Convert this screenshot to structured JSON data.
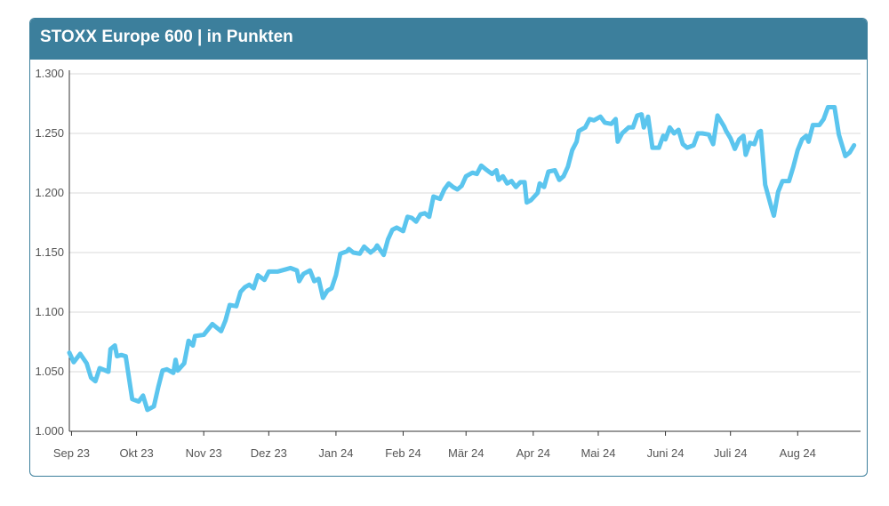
{
  "header": {
    "title": "STOXX Europe 600 | in Punkten"
  },
  "colors": {
    "header_bg": "#3c7f9c",
    "line": "#5bc5ee",
    "grid": "#d9d9d9",
    "axis": "#333333",
    "tick_text": "#555555"
  },
  "chart_data": {
    "type": "line",
    "title": "STOXX Europe 600 | in Punkten",
    "xlabel": "",
    "ylabel": "",
    "ylim": [
      1000,
      1300
    ],
    "y_ticks": [
      {
        "value": 1000,
        "label": "1.000"
      },
      {
        "value": 1050,
        "label": "1.050"
      },
      {
        "value": 1100,
        "label": "1.100"
      },
      {
        "value": 1150,
        "label": "1.150"
      },
      {
        "value": 1200,
        "label": "1.200"
      },
      {
        "value": 1250,
        "label": "1.250"
      },
      {
        "value": 1300,
        "label": "1.300"
      }
    ],
    "x_range": [
      "2023-08-31",
      "2024-08-30"
    ],
    "x_ticks": [
      {
        "date": "2023-09-01",
        "label": "Sep 23"
      },
      {
        "date": "2023-10-01",
        "label": "Okt 23"
      },
      {
        "date": "2023-11-01",
        "label": "Nov 23"
      },
      {
        "date": "2023-12-01",
        "label": "Dez 23"
      },
      {
        "date": "2024-01-01",
        "label": "Jan 24"
      },
      {
        "date": "2024-02-01",
        "label": "Feb 24"
      },
      {
        "date": "2024-03-01",
        "label": "Mär 24"
      },
      {
        "date": "2024-04-01",
        "label": "Apr 24"
      },
      {
        "date": "2024-05-01",
        "label": "Mai 24"
      },
      {
        "date": "2024-06-01",
        "label": "Juni 24"
      },
      {
        "date": "2024-07-01",
        "label": "Juli 24"
      },
      {
        "date": "2024-08-01",
        "label": "Aug 24"
      }
    ],
    "grid": true,
    "legend": "none",
    "series": [
      {
        "points": [
          [
            "2023-08-31",
            1066
          ],
          [
            "2023-09-02",
            1058
          ],
          [
            "2023-09-05",
            1065
          ],
          [
            "2023-09-08",
            1057
          ],
          [
            "2023-09-10",
            1045
          ],
          [
            "2023-09-12",
            1042
          ],
          [
            "2023-09-14",
            1053
          ],
          [
            "2023-09-18",
            1050
          ],
          [
            "2023-09-19",
            1069
          ],
          [
            "2023-09-21",
            1072
          ],
          [
            "2023-09-22",
            1063
          ],
          [
            "2023-09-24",
            1064
          ],
          [
            "2023-09-26",
            1063
          ],
          [
            "2023-09-29",
            1027
          ],
          [
            "2023-10-02",
            1025
          ],
          [
            "2023-10-04",
            1030
          ],
          [
            "2023-10-06",
            1018
          ],
          [
            "2023-10-09",
            1021
          ],
          [
            "2023-10-11",
            1037
          ],
          [
            "2023-10-13",
            1051
          ],
          [
            "2023-10-15",
            1052
          ],
          [
            "2023-10-18",
            1049
          ],
          [
            "2023-10-19",
            1060
          ],
          [
            "2023-10-20",
            1051
          ],
          [
            "2023-10-23",
            1057
          ],
          [
            "2023-10-25",
            1076
          ],
          [
            "2023-10-27",
            1072
          ],
          [
            "2023-10-28",
            1080
          ],
          [
            "2023-11-01",
            1081
          ],
          [
            "2023-11-05",
            1090
          ],
          [
            "2023-11-07",
            1087
          ],
          [
            "2023-11-09",
            1084
          ],
          [
            "2023-11-11",
            1093
          ],
          [
            "2023-11-13",
            1106
          ],
          [
            "2023-11-16",
            1105
          ],
          [
            "2023-11-18",
            1117
          ],
          [
            "2023-11-20",
            1121
          ],
          [
            "2023-11-22",
            1123
          ],
          [
            "2023-11-24",
            1120
          ],
          [
            "2023-11-26",
            1131
          ],
          [
            "2023-11-29",
            1127
          ],
          [
            "2023-12-01",
            1134
          ],
          [
            "2023-12-05",
            1134
          ],
          [
            "2023-12-09",
            1136
          ],
          [
            "2023-12-11",
            1137
          ],
          [
            "2023-12-14",
            1135
          ],
          [
            "2023-12-15",
            1126
          ],
          [
            "2023-12-17",
            1132
          ],
          [
            "2023-12-20",
            1135
          ],
          [
            "2023-12-22",
            1126
          ],
          [
            "2023-12-24",
            1128
          ],
          [
            "2023-12-26",
            1112
          ],
          [
            "2023-12-28",
            1118
          ],
          [
            "2023-12-30",
            1120
          ],
          [
            "2024-01-01",
            1131
          ],
          [
            "2024-01-03",
            1149
          ],
          [
            "2024-01-06",
            1151
          ],
          [
            "2024-01-07",
            1153
          ],
          [
            "2024-01-09",
            1150
          ],
          [
            "2024-01-12",
            1149
          ],
          [
            "2024-01-14",
            1155
          ],
          [
            "2024-01-17",
            1150
          ],
          [
            "2024-01-19",
            1153
          ],
          [
            "2024-01-20",
            1156
          ],
          [
            "2024-01-23",
            1148
          ],
          [
            "2024-01-25",
            1161
          ],
          [
            "2024-01-27",
            1169
          ],
          [
            "2024-01-29",
            1171
          ],
          [
            "2024-02-01",
            1168
          ],
          [
            "2024-02-03",
            1180
          ],
          [
            "2024-02-05",
            1179
          ],
          [
            "2024-02-07",
            1176
          ],
          [
            "2024-02-09",
            1182
          ],
          [
            "2024-02-11",
            1183
          ],
          [
            "2024-02-13",
            1180
          ],
          [
            "2024-02-15",
            1197
          ],
          [
            "2024-02-18",
            1195
          ],
          [
            "2024-02-20",
            1203
          ],
          [
            "2024-02-22",
            1208
          ],
          [
            "2024-02-24",
            1205
          ],
          [
            "2024-02-26",
            1203
          ],
          [
            "2024-02-28",
            1206
          ],
          [
            "2024-03-01",
            1214
          ],
          [
            "2024-03-04",
            1217
          ],
          [
            "2024-03-06",
            1216
          ],
          [
            "2024-03-08",
            1223
          ],
          [
            "2024-03-10",
            1220
          ],
          [
            "2024-03-13",
            1216
          ],
          [
            "2024-03-15",
            1219
          ],
          [
            "2024-03-16",
            1211
          ],
          [
            "2024-03-18",
            1214
          ],
          [
            "2024-03-20",
            1208
          ],
          [
            "2024-03-22",
            1210
          ],
          [
            "2024-03-24",
            1205
          ],
          [
            "2024-03-26",
            1209
          ],
          [
            "2024-03-28",
            1209
          ],
          [
            "2024-03-29",
            1192
          ],
          [
            "2024-03-31",
            1194
          ],
          [
            "2024-04-03",
            1200
          ],
          [
            "2024-04-04",
            1208
          ],
          [
            "2024-04-06",
            1205
          ],
          [
            "2024-04-08",
            1218
          ],
          [
            "2024-04-11",
            1219
          ],
          [
            "2024-04-13",
            1211
          ],
          [
            "2024-04-15",
            1214
          ],
          [
            "2024-04-17",
            1222
          ],
          [
            "2024-04-19",
            1236
          ],
          [
            "2024-04-21",
            1243
          ],
          [
            "2024-04-22",
            1252
          ],
          [
            "2024-04-25",
            1255
          ],
          [
            "2024-04-27",
            1262
          ],
          [
            "2024-04-29",
            1261
          ],
          [
            "2024-05-02",
            1264
          ],
          [
            "2024-05-04",
            1259
          ],
          [
            "2024-05-07",
            1258
          ],
          [
            "2024-05-09",
            1262
          ],
          [
            "2024-05-10",
            1243
          ],
          [
            "2024-05-12",
            1250
          ],
          [
            "2024-05-15",
            1255
          ],
          [
            "2024-05-17",
            1255
          ],
          [
            "2024-05-19",
            1265
          ],
          [
            "2024-05-21",
            1266
          ],
          [
            "2024-05-22",
            1255
          ],
          [
            "2024-05-24",
            1264
          ],
          [
            "2024-05-26",
            1238
          ],
          [
            "2024-05-29",
            1238
          ],
          [
            "2024-05-31",
            1248
          ],
          [
            "2024-06-01",
            1245
          ],
          [
            "2024-06-03",
            1255
          ],
          [
            "2024-06-05",
            1250
          ],
          [
            "2024-06-07",
            1253
          ],
          [
            "2024-06-09",
            1241
          ],
          [
            "2024-06-11",
            1238
          ],
          [
            "2024-06-14",
            1240
          ],
          [
            "2024-06-16",
            1250
          ],
          [
            "2024-06-18",
            1250
          ],
          [
            "2024-06-21",
            1249
          ],
          [
            "2024-06-23",
            1241
          ],
          [
            "2024-06-25",
            1265
          ],
          [
            "2024-06-28",
            1256
          ],
          [
            "2024-06-29",
            1252
          ],
          [
            "2024-07-01",
            1246
          ],
          [
            "2024-07-03",
            1237
          ],
          [
            "2024-07-05",
            1245
          ],
          [
            "2024-07-07",
            1248
          ],
          [
            "2024-07-08",
            1232
          ],
          [
            "2024-07-10",
            1242
          ],
          [
            "2024-07-12",
            1241
          ],
          [
            "2024-07-14",
            1251
          ],
          [
            "2024-07-15",
            1252
          ],
          [
            "2024-07-17",
            1207
          ],
          [
            "2024-07-20",
            1187
          ],
          [
            "2024-07-21",
            1181
          ],
          [
            "2024-07-23",
            1201
          ],
          [
            "2024-07-25",
            1210
          ],
          [
            "2024-07-28",
            1210
          ],
          [
            "2024-07-30",
            1222
          ],
          [
            "2024-08-01",
            1236
          ],
          [
            "2024-08-03",
            1245
          ],
          [
            "2024-08-05",
            1248
          ],
          [
            "2024-08-06",
            1243
          ],
          [
            "2024-08-08",
            1257
          ],
          [
            "2024-08-11",
            1257
          ],
          [
            "2024-08-13",
            1262
          ],
          [
            "2024-08-15",
            1272
          ],
          [
            "2024-08-18",
            1272
          ],
          [
            "2024-08-20",
            1249
          ],
          [
            "2024-08-23",
            1231
          ],
          [
            "2024-08-25",
            1234
          ],
          [
            "2024-08-27",
            1240
          ]
        ]
      }
    ]
  }
}
